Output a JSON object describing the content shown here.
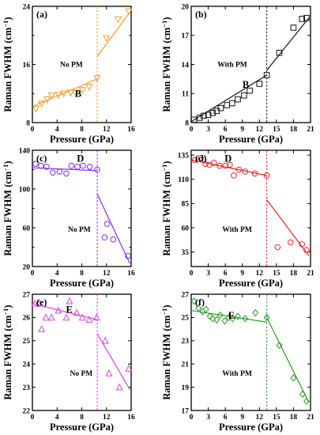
{
  "figure": {
    "ylabel_main": "Raman FWHM (cm",
    "ylabel_sup": "−1",
    "ylabel_close": ")",
    "xlabel": "Pressure (GPa)"
  },
  "chart_data": [
    {
      "type": "scatter",
      "panel": "(a)",
      "annotation": "No PM",
      "mode": "B",
      "color": "#f39c2c",
      "xlim": [
        0,
        16
      ],
      "ylim": [
        8,
        24
      ],
      "xticks": [
        0,
        4,
        8,
        12,
        16
      ],
      "yticks": [
        8,
        16,
        24
      ],
      "yticks_minor": [
        12,
        20
      ],
      "transition_x": 10.5,
      "series": [
        {
          "marker": "triangle-down",
          "points": [
            [
              0.6,
              9.9
            ],
            [
              1.5,
              10.6
            ],
            [
              2.4,
              11.2
            ],
            [
              3.1,
              11.7
            ],
            [
              4.2,
              11.8
            ],
            [
              5.1,
              12.0
            ],
            [
              6.2,
              12.1
            ],
            [
              7.0,
              12.1
            ],
            [
              8.1,
              12.5
            ],
            [
              9.2,
              12.9
            ],
            [
              10.5,
              14.1
            ]
          ]
        },
        {
          "marker": "triangle-down",
          "points": [
            [
              12.0,
              19.6
            ],
            [
              13.9,
              22.2
            ],
            [
              15.6,
              23.3
            ]
          ]
        }
      ],
      "fits": [
        [
          [
            0.2,
            10.3
          ],
          [
            10.5,
            14.0
          ]
        ],
        [
          [
            10.5,
            17.1
          ],
          [
            15.8,
            23.2
          ]
        ]
      ]
    },
    {
      "type": "scatter",
      "panel": "(b)",
      "annotation": "With PM",
      "mode": "B",
      "color": "#111111",
      "xlim": [
        0,
        21
      ],
      "ylim": [
        8,
        20
      ],
      "xticks": [
        0,
        3,
        6,
        9,
        12,
        15,
        18,
        21
      ],
      "yticks": [
        8,
        11,
        14,
        17,
        20
      ],
      "transition_x": 13.3,
      "series": [
        {
          "marker": "square",
          "points": [
            [
              0.5,
              8.3
            ],
            [
              1.5,
              8.5
            ],
            [
              2.2,
              8.7
            ],
            [
              3.0,
              8.8
            ],
            [
              3.8,
              9.0
            ],
            [
              4.5,
              9.2
            ],
            [
              5.2,
              9.5
            ],
            [
              6.3,
              9.8
            ],
            [
              7.2,
              10.0
            ],
            [
              8.2,
              10.4
            ],
            [
              9.3,
              10.8
            ],
            [
              10.3,
              11.3
            ],
            [
              12.0,
              12.0
            ],
            [
              13.3,
              12.9
            ]
          ]
        },
        {
          "marker": "square",
          "points": [
            [
              15.5,
              15.2
            ],
            [
              18.0,
              17.8
            ],
            [
              19.5,
              18.7
            ],
            [
              20.3,
              18.8
            ]
          ]
        }
      ],
      "fits": [
        [
          [
            0.0,
            8.1
          ],
          [
            13.3,
            12.9
          ]
        ],
        [
          [
            13.3,
            13.4
          ],
          [
            20.7,
            18.8
          ]
        ]
      ]
    },
    {
      "type": "scatter",
      "panel": "(c)",
      "annotation": "No PM",
      "mode": "D",
      "color": "#8a2be2",
      "xlim": [
        0,
        16
      ],
      "ylim": [
        20,
        140
      ],
      "xticks": [
        0,
        4,
        8,
        12,
        16
      ],
      "yticks": [
        20,
        60,
        100,
        140
      ],
      "yticks_minor": [
        40,
        80,
        120
      ],
      "transition_x": 10.5,
      "series": [
        {
          "marker": "circle",
          "points": [
            [
              0.5,
              126
            ],
            [
              1.4,
              124
            ],
            [
              2.3,
              123
            ],
            [
              3.3,
              117
            ],
            [
              4.4,
              118
            ],
            [
              5.5,
              116
            ],
            [
              6.3,
              124
            ],
            [
              7.3,
              123
            ],
            [
              8.2,
              124
            ],
            [
              9.3,
              123
            ],
            [
              10.5,
              120
            ]
          ]
        },
        {
          "marker": "circle",
          "points": [
            [
              11.7,
              50
            ],
            [
              12.1,
              64
            ],
            [
              13.1,
              48
            ],
            [
              15.5,
              31
            ]
          ]
        }
      ],
      "fits": [
        [
          [
            0.0,
            122
          ],
          [
            10.5,
            119
          ]
        ],
        [
          [
            10.5,
            95
          ],
          [
            15.8,
            23
          ]
        ]
      ]
    },
    {
      "type": "scatter",
      "panel": "(d)",
      "annotation": "With PM",
      "mode": "D",
      "color": "#e8262a",
      "xlim": [
        0,
        21
      ],
      "ylim": [
        20,
        140
      ],
      "xticks": [
        0,
        3,
        6,
        9,
        12,
        15,
        18,
        21
      ],
      "yticks": [
        35,
        60,
        85,
        110,
        135
      ],
      "transition_x": 13.3,
      "series": [
        {
          "marker": "circle",
          "points": [
            [
              0.6,
              130
            ],
            [
              1.7,
              132
            ],
            [
              2.5,
              126
            ],
            [
              3.2,
              125
            ],
            [
              4.0,
              127
            ],
            [
              5.0,
              124
            ],
            [
              6.0,
              124
            ],
            [
              6.8,
              125
            ],
            [
              7.5,
              114
            ],
            [
              8.4,
              120
            ],
            [
              9.5,
              118
            ],
            [
              11.2,
              116
            ],
            [
              13.3,
              114
            ]
          ]
        },
        {
          "marker": "circle",
          "points": [
            [
              15.2,
              40
            ],
            [
              17.5,
              45
            ],
            [
              19.5,
              43
            ],
            [
              20.3,
              37
            ]
          ]
        }
      ],
      "fits": [
        [
          [
            0.0,
            130
          ],
          [
            13.3,
            114
          ]
        ],
        [
          [
            13.3,
            89
          ],
          [
            20.7,
            31
          ]
        ]
      ]
    },
    {
      "type": "scatter",
      "panel": "(e)",
      "annotation": "No PM",
      "mode": "E",
      "color": "#e040e0",
      "xlim": [
        0,
        16
      ],
      "ylim": [
        22,
        27
      ],
      "xticks": [
        0,
        4,
        8,
        12,
        16
      ],
      "yticks": [
        22,
        23,
        24,
        25,
        26,
        27
      ],
      "transition_x": 10.5,
      "series": [
        {
          "marker": "triangle-up",
          "points": [
            [
              0.4,
              26.6
            ],
            [
              1.1,
              26.6
            ],
            [
              1.5,
              25.5
            ],
            [
              2.2,
              26.0
            ],
            [
              3.1,
              26.0
            ],
            [
              4.2,
              26.3
            ],
            [
              5.5,
              26.0
            ],
            [
              6.0,
              26.7
            ],
            [
              7.2,
              26.2
            ],
            [
              8.1,
              26.0
            ],
            [
              9.2,
              25.9
            ],
            [
              10.4,
              26.0
            ]
          ]
        },
        {
          "marker": "triangle-up",
          "points": [
            [
              11.8,
              25.0
            ],
            [
              12.4,
              23.6
            ],
            [
              14.1,
              23.0
            ],
            [
              15.6,
              23.8
            ]
          ]
        }
      ],
      "fits": [
        [
          [
            0.0,
            26.6
          ],
          [
            10.5,
            25.9
          ]
        ],
        [
          [
            10.5,
            25.3
          ],
          [
            15.8,
            22.9
          ]
        ]
      ]
    },
    {
      "type": "scatter",
      "panel": "(f)",
      "annotation": "With PM",
      "mode": "E",
      "color": "#2a9b2a",
      "xlim": [
        0,
        21
      ],
      "ylim": [
        17,
        27
      ],
      "xticks": [
        0,
        3,
        6,
        9,
        12,
        15,
        18,
        21
      ],
      "yticks": [
        17,
        19,
        21,
        23,
        25,
        27
      ],
      "transition_x": 13.3,
      "series": [
        {
          "marker": "diamond",
          "points": [
            [
              0.5,
              26.4
            ],
            [
              1.3,
              25.8
            ],
            [
              2.0,
              25.5
            ],
            [
              2.6,
              25.7
            ],
            [
              3.3,
              25.1
            ],
            [
              3.8,
              24.9
            ],
            [
              4.5,
              24.8
            ],
            [
              5.1,
              25.2
            ],
            [
              5.9,
              24.7
            ],
            [
              6.6,
              25.0
            ],
            [
              7.3,
              24.9
            ],
            [
              8.2,
              25.1
            ],
            [
              9.5,
              24.9
            ],
            [
              11.3,
              25.4
            ],
            [
              13.3,
              25.0
            ]
          ]
        },
        {
          "marker": "diamond",
          "points": [
            [
              15.5,
              22.6
            ],
            [
              18.0,
              19.8
            ],
            [
              19.6,
              18.4
            ],
            [
              20.3,
              17.8
            ]
          ]
        }
      ],
      "fits": [
        [
          [
            0.0,
            25.6
          ],
          [
            13.3,
            24.6
          ]
        ],
        [
          [
            13.3,
            25.0
          ],
          [
            20.7,
            17.7
          ]
        ]
      ]
    }
  ]
}
